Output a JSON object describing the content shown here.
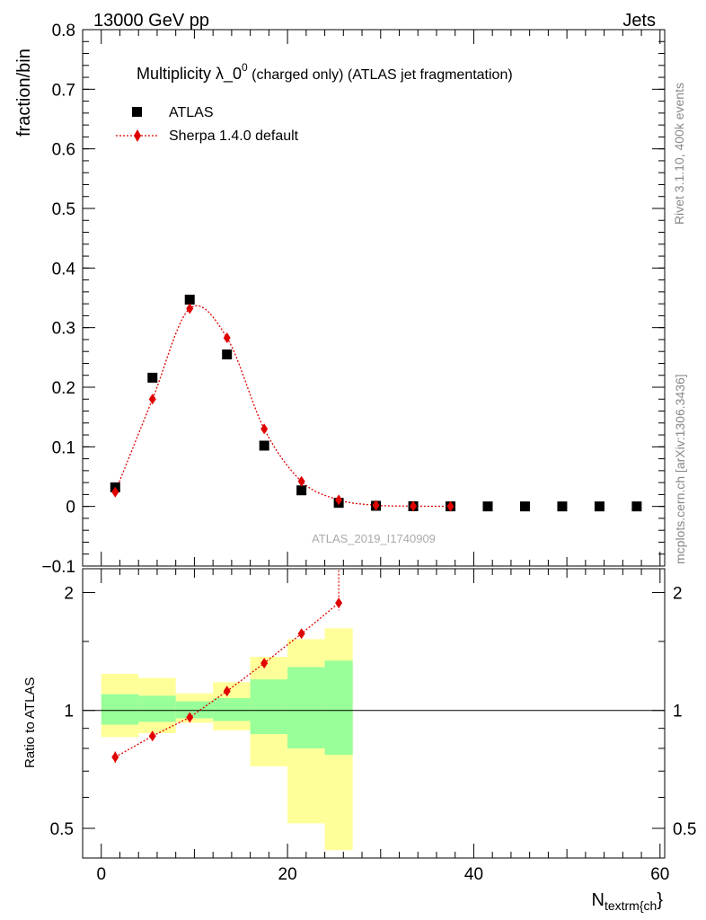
{
  "header": {
    "energy_label": "13000 GeV pp",
    "process_label": "Jets"
  },
  "side_labels": {
    "rivet": "Rivet 3.1.10,  400k events",
    "mcplots": "mcplots.cern.ch [arXiv:1306.3436]"
  },
  "chart_data": [
    {
      "type": "scatter",
      "title_main": "Multiplicity λ_0",
      "title_sup": "0",
      "title_sub": " (charged only) (ATLAS jet fragmentation)",
      "ylabel": "fraction/bin",
      "ylim": [
        -0.1,
        0.8
      ],
      "yticks": [
        -0.1,
        0,
        0.1,
        0.2,
        0.3,
        0.4,
        0.5,
        0.6,
        0.7,
        0.8
      ],
      "ytick_labels": [
        "−0.1",
        "0",
        "0.1",
        "0.2",
        "0.3",
        "0.4",
        "0.5",
        "0.6",
        "0.7",
        "0.8"
      ],
      "xlim": [
        -2,
        60.5
      ],
      "watermark": "ATLAS_2019_I1740909",
      "legend": {
        "position": "top-left",
        "entries": [
          "ATLAS",
          "Sherpa 1.4.0 default"
        ]
      },
      "series": [
        {
          "name": "ATLAS",
          "marker": "square",
          "color": "#000000",
          "x": [
            1.5,
            5.5,
            9.5,
            13.5,
            17.5,
            21.5,
            25.5,
            29.5,
            33.5,
            37.5,
            41.5,
            45.5,
            49.5,
            53.5,
            57.5
          ],
          "y": [
            0.032,
            0.216,
            0.347,
            0.255,
            0.102,
            0.027,
            0.006,
            0.001,
            0.0003,
            0.0001,
            0.0,
            0.0,
            0.0,
            0.0,
            0.0
          ]
        },
        {
          "name": "Sherpa 1.4.0 default",
          "marker": "diamond",
          "line": "dotted",
          "color": "#e00000",
          "x": [
            1.5,
            5.5,
            9.5,
            13.5,
            17.5,
            21.5,
            25.5,
            29.5,
            33.5,
            37.5
          ],
          "y": [
            0.024,
            0.18,
            0.332,
            0.283,
            0.13,
            0.042,
            0.011,
            0.002,
            0.0005,
            0.0001
          ]
        }
      ]
    },
    {
      "type": "scatter",
      "ylabel": "Ratio to ATLAS",
      "ylim": [
        0.42,
        2.3
      ],
      "yscale": "log",
      "yticks": [
        0.5,
        1,
        2
      ],
      "ytick_labels": [
        "0.5",
        "1",
        "2"
      ],
      "xlim": [
        -2,
        60.5
      ],
      "xticks": [
        0,
        20,
        40,
        60
      ],
      "xtick_labels": [
        "0",
        "20",
        "40",
        "60"
      ],
      "xlabel_main": "N",
      "xlabel_sub": "textrm{ch",
      "xlabel_tail": "}",
      "uncertainty_bands": {
        "x_edges": [
          0,
          4,
          8,
          12,
          16,
          20,
          24,
          27
        ],
        "green_low": [
          0.92,
          0.935,
          0.955,
          0.94,
          0.87,
          0.8,
          0.77
        ],
        "green_high": [
          1.1,
          1.09,
          1.055,
          1.075,
          1.2,
          1.29,
          1.34
        ],
        "yellow_low": [
          0.855,
          0.875,
          0.93,
          0.89,
          0.72,
          0.515,
          0.44
        ],
        "yellow_high": [
          1.24,
          1.21,
          1.105,
          1.18,
          1.37,
          1.52,
          1.62
        ],
        "green_color": "#99ff99",
        "yellow_color": "#ffff99"
      },
      "series": [
        {
          "name": "Sherpa 1.4.0 default / ATLAS",
          "marker": "diamond",
          "line": "dotted",
          "color": "#e00000",
          "x": [
            1.5,
            5.5,
            9.5,
            13.5,
            17.5,
            21.5,
            25.5
          ],
          "y": [
            0.76,
            0.86,
            0.96,
            1.12,
            1.32,
            1.57,
            1.88
          ],
          "err_low": [
            0.025,
            0.01,
            0.008,
            0.01,
            0.015,
            0.03,
            0.08
          ],
          "err_high": [
            0.025,
            0.01,
            0.008,
            0.01,
            0.015,
            0.03,
            0.4
          ]
        }
      ]
    }
  ]
}
